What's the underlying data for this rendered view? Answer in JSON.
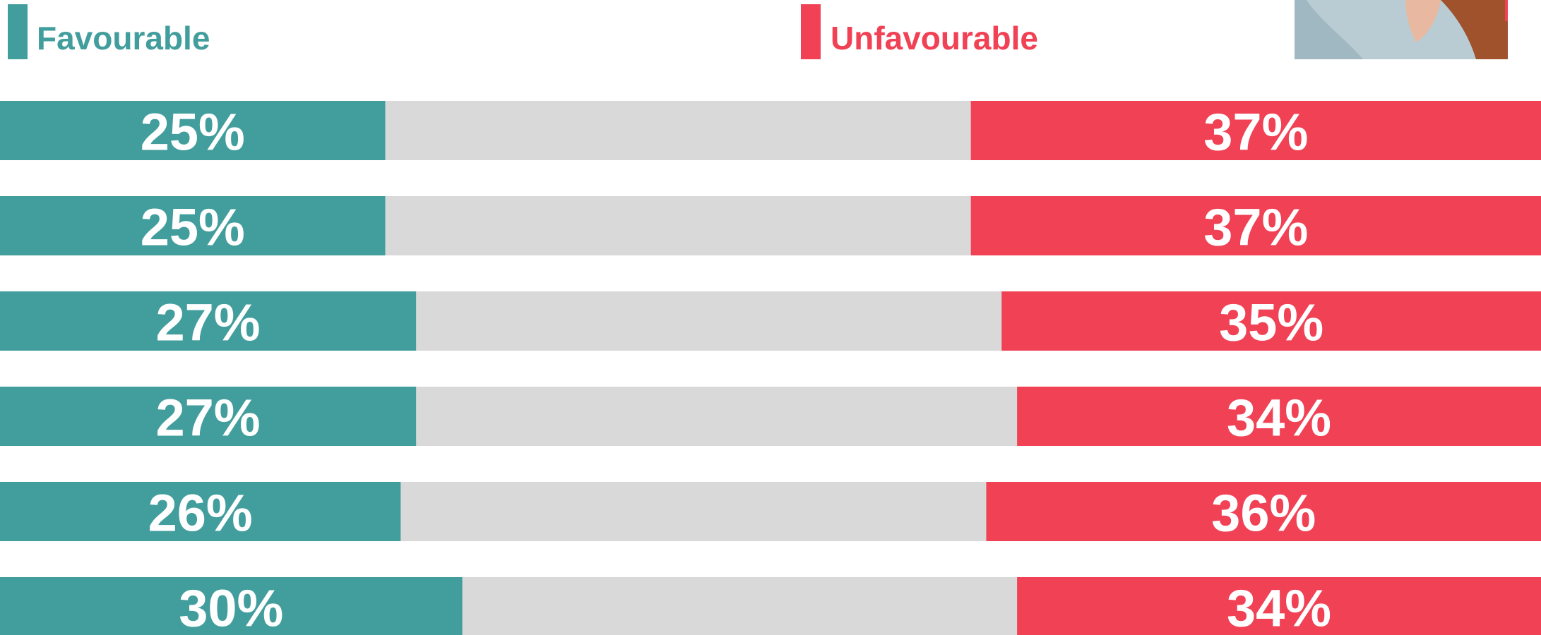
{
  "chart_data": {
    "type": "bar",
    "xlim": [
      0,
      100
    ],
    "series": [
      {
        "name": "Favourable",
        "color": "#429e9d",
        "values": [
          25,
          25,
          27,
          27,
          26,
          30
        ],
        "value_labels": [
          "25%",
          "25%",
          "27%",
          "27%",
          "26%",
          "30%"
        ]
      },
      {
        "name": "Unfavourable",
        "color": "#f04155",
        "values": [
          37,
          37,
          35,
          34,
          36,
          34
        ],
        "value_labels": [
          "37%",
          "37%",
          "35%",
          "34%",
          "36%",
          "34%"
        ]
      }
    ]
  }
}
